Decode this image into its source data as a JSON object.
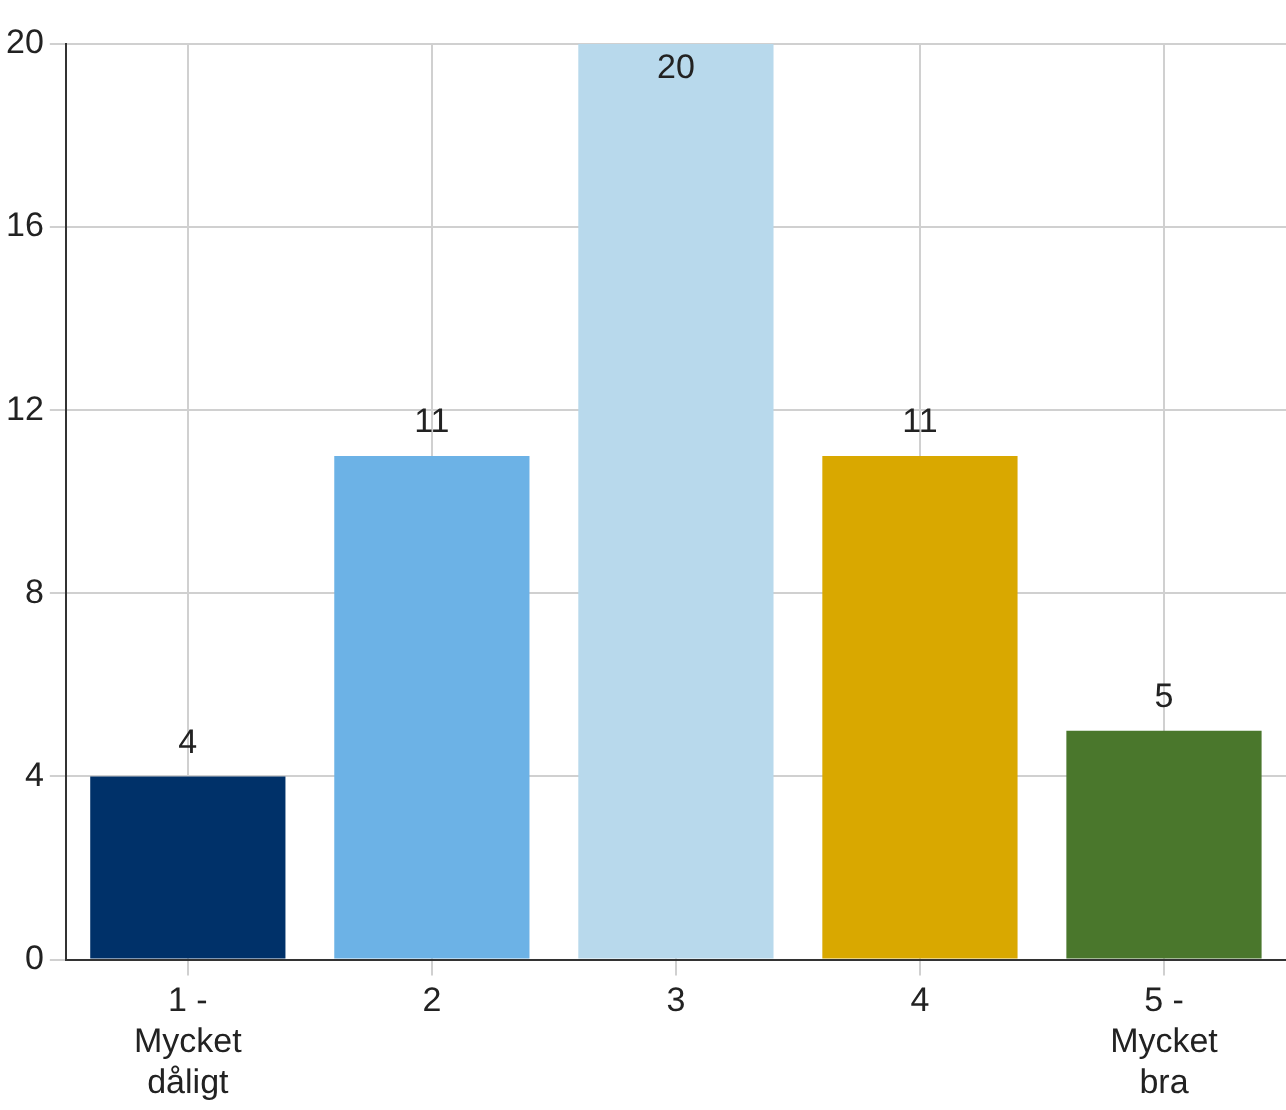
{
  "chart_data": {
    "type": "bar",
    "categories": [
      "1 - Mycket dåligt",
      "2",
      "3",
      "4",
      "5 - Mycket bra"
    ],
    "values": [
      4,
      11,
      20,
      11,
      5
    ],
    "colors": [
      "#003169",
      "#6cb2e6",
      "#b8d9ec",
      "#d9a800",
      "#4a772c"
    ],
    "ylim": [
      0,
      20
    ],
    "yticks": [
      0,
      4,
      8,
      12,
      16,
      20
    ],
    "grid": true,
    "data_labels": true
  }
}
